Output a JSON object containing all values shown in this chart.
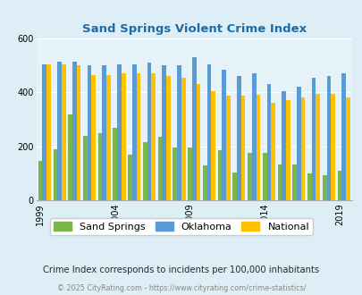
{
  "title": "Sand Springs Violent Crime Index",
  "years": [
    1999,
    2000,
    2001,
    2002,
    2003,
    2004,
    2005,
    2006,
    2007,
    2008,
    2009,
    2010,
    2011,
    2012,
    2013,
    2014,
    2015,
    2016,
    2017,
    2018,
    2019
  ],
  "sand_springs": [
    148,
    190,
    320,
    240,
    248,
    270,
    170,
    215,
    235,
    195,
    195,
    130,
    185,
    105,
    175,
    175,
    135,
    135,
    100,
    95,
    110
  ],
  "oklahoma": [
    505,
    515,
    515,
    500,
    500,
    505,
    505,
    510,
    500,
    500,
    530,
    505,
    485,
    460,
    470,
    430,
    405,
    420,
    455,
    460,
    470
  ],
  "national": [
    505,
    505,
    500,
    465,
    465,
    472,
    470,
    472,
    462,
    455,
    430,
    405,
    388,
    388,
    390,
    362,
    372,
    383,
    395,
    395,
    380
  ],
  "sand_springs_color": "#7ab648",
  "oklahoma_color": "#5b9bd5",
  "national_color": "#ffc000",
  "bg_color": "#ddeef6",
  "plot_bg": "#ddeef6",
  "plot_face": "#e5f2f8",
  "ylabel_max": 600,
  "yticks": [
    0,
    200,
    400,
    600
  ],
  "x_tick_years": [
    1999,
    2004,
    2009,
    2014,
    2019
  ],
  "subtitle": "Crime Index corresponds to incidents per 100,000 inhabitants",
  "footer": "© 2025 CityRating.com - https://www.cityrating.com/crime-statistics/",
  "title_color": "#1b6ca8",
  "subtitle_color": "#2a2a2a",
  "footer_color": "#888888"
}
